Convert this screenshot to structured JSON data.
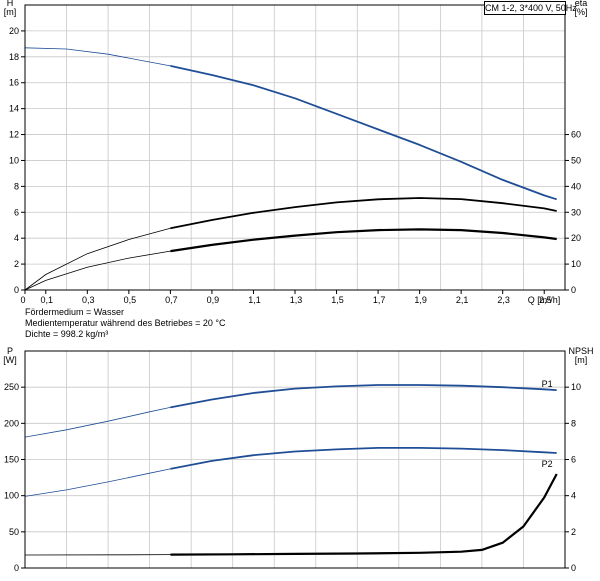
{
  "pump_label": "CM 1-2, 3*400 V, 50Hz",
  "medium": {
    "line1": "Fördermedium = Wasser",
    "line2": "Medientemperatur während des Betriebes = 20 °C",
    "line3": "Dichte = 998.2 kg/m³"
  },
  "chart_data": [
    {
      "type": "line",
      "title": "",
      "xlabel": "Q [m³/h]",
      "ylabel": "H\n[m]",
      "y2label": "eta\n[%]",
      "xlim": [
        0,
        2.6
      ],
      "ylim": [
        0,
        22
      ],
      "y2lim": [
        0,
        110
      ],
      "x_ticks": [
        "0",
        "0,1",
        "0,3",
        "0,5",
        "0,7",
        "0,9",
        "1,1",
        "1,3",
        "1,5",
        "1,7",
        "1,9",
        "2,1",
        "2,3",
        "2,5"
      ],
      "x_tick_values": [
        0,
        0.1,
        0.3,
        0.5,
        0.7,
        0.9,
        1.1,
        1.3,
        1.5,
        1.7,
        1.9,
        2.1,
        2.3,
        2.5
      ],
      "y_ticks": [
        0,
        2,
        4,
        6,
        8,
        10,
        12,
        14,
        16,
        18,
        20
      ],
      "y2_ticks": [
        0,
        10,
        20,
        30,
        40,
        50,
        60
      ],
      "grid": true,
      "series": [
        {
          "axis": "left",
          "color": "#1f4e96",
          "operating_range": [
            0.7,
            2.56
          ],
          "x": [
            0,
            0.2,
            0.4,
            0.6,
            0.7,
            0.9,
            1.1,
            1.3,
            1.5,
            1.7,
            1.9,
            2.1,
            2.3,
            2.5,
            2.56
          ],
          "y": [
            18.7,
            18.6,
            18.2,
            17.6,
            17.3,
            16.6,
            15.8,
            14.8,
            13.6,
            12.4,
            11.2,
            9.9,
            8.5,
            7.3,
            7.0
          ]
        },
        {
          "axis": "right",
          "color": "#000000",
          "operating_range": [
            0.7,
            2.56
          ],
          "x": [
            0,
            0.1,
            0.3,
            0.5,
            0.7,
            0.9,
            1.1,
            1.3,
            1.5,
            1.7,
            1.9,
            2.1,
            2.3,
            2.5,
            2.56
          ],
          "y": [
            0,
            6,
            14,
            19.5,
            23.8,
            27,
            29.8,
            32,
            33.8,
            35,
            35.5,
            35.1,
            33.5,
            31.5,
            30.5
          ]
        },
        {
          "axis": "right",
          "color": "#000000",
          "thick": true,
          "operating_range": [
            0.7,
            2.56
          ],
          "x": [
            0,
            0.1,
            0.3,
            0.5,
            0.7,
            0.9,
            1.1,
            1.3,
            1.5,
            1.7,
            1.9,
            2.1,
            2.3,
            2.5,
            2.56
          ],
          "y": [
            0,
            3.7,
            8.8,
            12.3,
            15,
            17.4,
            19.4,
            21,
            22.3,
            23.1,
            23.4,
            23.1,
            22,
            20.3,
            19.7
          ]
        }
      ]
    },
    {
      "type": "line",
      "title": "",
      "xlabel": "",
      "ylabel": "P\n[W]",
      "y2label": "NPSH\n[m]",
      "xlim": [
        0,
        2.6
      ],
      "ylim": [
        0,
        300
      ],
      "y2lim": [
        0,
        12
      ],
      "y_ticks": [
        0,
        50,
        100,
        150,
        200,
        250
      ],
      "y2_ticks": [
        0,
        2,
        4,
        6,
        8,
        10
      ],
      "grid": true,
      "series": [
        {
          "name": "P1",
          "axis": "left",
          "color": "#1f4e96",
          "operating_range": [
            0.7,
            2.56
          ],
          "x": [
            0,
            0.2,
            0.4,
            0.6,
            0.7,
            0.9,
            1.1,
            1.3,
            1.5,
            1.7,
            1.9,
            2.1,
            2.3,
            2.5,
            2.56
          ],
          "y": [
            181,
            191,
            203,
            216,
            222,
            233,
            242,
            248,
            251,
            253,
            253,
            252,
            250,
            247,
            246
          ]
        },
        {
          "name": "P2",
          "axis": "left",
          "color": "#1f4e96",
          "operating_range": [
            0.7,
            2.56
          ],
          "x": [
            0,
            0.2,
            0.4,
            0.6,
            0.7,
            0.9,
            1.1,
            1.3,
            1.5,
            1.7,
            1.9,
            2.1,
            2.3,
            2.5,
            2.56
          ],
          "y": [
            99,
            108,
            119,
            131,
            137,
            148,
            156,
            161,
            164,
            166,
            166,
            165,
            163,
            160,
            159
          ]
        },
        {
          "name": "",
          "axis": "right",
          "color": "#000000",
          "thick": true,
          "operating_range": [
            0.7,
            2.56
          ],
          "x": [
            0,
            0.5,
            0.7,
            1.0,
            1.3,
            1.6,
            1.9,
            2.1,
            2.2,
            2.3,
            2.4,
            2.5,
            2.56
          ],
          "y": [
            0.72,
            0.73,
            0.74,
            0.76,
            0.78,
            0.8,
            0.84,
            0.9,
            1.0,
            1.4,
            2.3,
            3.9,
            5.2
          ]
        }
      ]
    }
  ]
}
